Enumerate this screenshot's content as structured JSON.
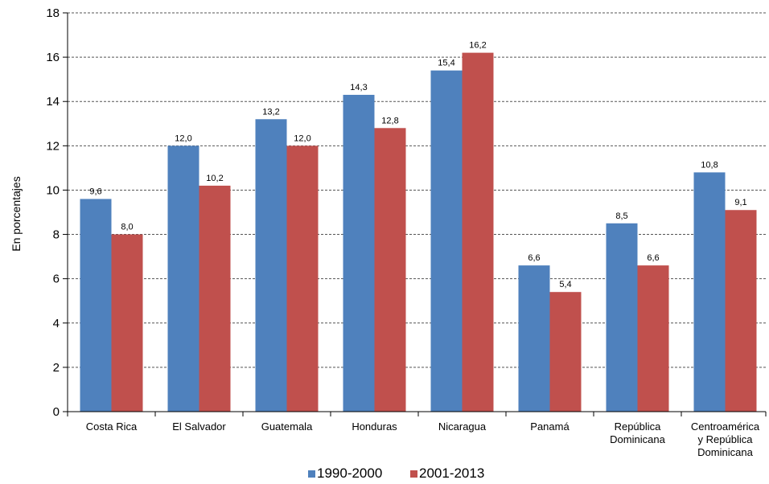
{
  "chart_data": {
    "type": "bar",
    "ylabel": "En porcentajes",
    "ylim": [
      0,
      18
    ],
    "ytick_step": 2,
    "grid": "horizontal-dashed",
    "legend_position": "bottom",
    "categories": [
      [
        "Costa Rica"
      ],
      [
        "El Salvador"
      ],
      [
        "Guatemala"
      ],
      [
        "Honduras"
      ],
      [
        "Nicaragua"
      ],
      [
        "Panamá"
      ],
      [
        "República",
        "Dominicana"
      ],
      [
        "Centroamérica",
        "y República",
        "Dominicana"
      ]
    ],
    "series": [
      {
        "name": "1990-2000",
        "color": "#4F81BD",
        "values": [
          9.6,
          12.0,
          13.2,
          14.3,
          15.4,
          6.6,
          8.5,
          10.8
        ],
        "labels": [
          "9,6",
          "12,0",
          "13,2",
          "14,3",
          "15,4",
          "6,6",
          "8,5",
          "10,8"
        ]
      },
      {
        "name": "2001-2013",
        "color": "#C0504D",
        "values": [
          8.0,
          10.2,
          12.0,
          12.8,
          16.2,
          5.4,
          6.6,
          9.1
        ],
        "labels": [
          "8,0",
          "10,2",
          "12,0",
          "12,8",
          "16,2",
          "5,4",
          "6,6",
          "9,1"
        ]
      }
    ]
  }
}
